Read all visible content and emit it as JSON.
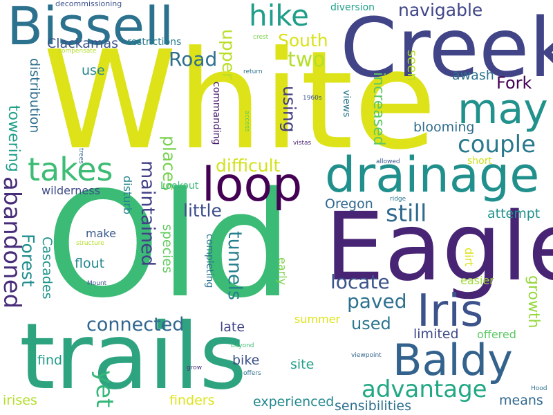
{
  "words": [
    {
      "text": "White",
      "color": "#dde318",
      "vertical": false
    },
    {
      "text": "Old",
      "color": "#3bbb75",
      "vertical": false
    },
    {
      "text": "Creek",
      "color": "#414487",
      "vertical": false
    },
    {
      "text": "Eagle",
      "color": "#482475",
      "vertical": false
    },
    {
      "text": "trails",
      "color": "#2ea37f",
      "vertical": false
    },
    {
      "text": "drainage",
      "color": "#21908d",
      "vertical": false
    },
    {
      "text": "Bissell",
      "color": "#2c728e",
      "vertical": false
    },
    {
      "text": "loop",
      "color": "#440154",
      "vertical": false
    },
    {
      "text": "Baldy",
      "color": "#33638d",
      "vertical": false
    },
    {
      "text": "Iris",
      "color": "#3b528b",
      "vertical": false
    },
    {
      "text": "may",
      "color": "#21918c",
      "vertical": false
    },
    {
      "text": "takes",
      "color": "#3dbc74",
      "vertical": false
    },
    {
      "text": "hike",
      "color": "#1f9e89",
      "vertical": false
    },
    {
      "text": "advantage",
      "color": "#22a884",
      "vertical": false
    },
    {
      "text": "couple",
      "color": "#29798e",
      "vertical": false
    },
    {
      "text": "abandoned",
      "color": "#472c7a",
      "vertical": true
    },
    {
      "text": "yet",
      "color": "#35b779",
      "vertical": true
    },
    {
      "text": "still",
      "color": "#306a8e",
      "vertical": false
    },
    {
      "text": "connected",
      "color": "#31668e",
      "vertical": false
    },
    {
      "text": "navigable",
      "color": "#404688",
      "vertical": false
    },
    {
      "text": "tunnels",
      "color": "#27808e",
      "vertical": true
    },
    {
      "text": "maintained",
      "color": "#424086",
      "vertical": true
    },
    {
      "text": "Forest",
      "color": "#218e8d",
      "vertical": true
    },
    {
      "text": "locate",
      "color": "#3b528b",
      "vertical": false
    },
    {
      "text": "paved",
      "color": "#2d718e",
      "vertical": false
    },
    {
      "text": "difficult",
      "color": "#d2e21b",
      "vertical": false
    },
    {
      "text": "South",
      "color": "#d8e219",
      "vertical": false
    },
    {
      "text": "two",
      "color": "#b5de2b",
      "vertical": false
    },
    {
      "text": "Road",
      "color": "#2e6f8e",
      "vertical": false
    },
    {
      "text": "upper",
      "color": "#bade28",
      "vertical": true
    },
    {
      "text": "using",
      "color": "#433e85",
      "vertical": true
    },
    {
      "text": "places",
      "color": "#7ad151",
      "vertical": true
    },
    {
      "text": "little",
      "color": "#3d4e8a",
      "vertical": false
    },
    {
      "text": "towering",
      "color": "#1fa088",
      "vertical": true
    },
    {
      "text": "Fork",
      "color": "#440154",
      "vertical": false
    },
    {
      "text": "growth",
      "color": "#97d83f",
      "vertical": true
    },
    {
      "text": "used",
      "color": "#2b758e",
      "vertical": false
    },
    {
      "text": "increased",
      "color": "#5ec962",
      "vertical": true
    },
    {
      "text": "Clackamas",
      "color": "#3b528b",
      "vertical": false
    },
    {
      "text": "blooming",
      "color": "#2f6c8e",
      "vertical": false
    },
    {
      "text": "distribution",
      "color": "#2e6e8e",
      "vertical": true
    },
    {
      "text": "Cascades",
      "color": "#1f948c",
      "vertical": true
    },
    {
      "text": "species",
      "color": "#63cb5f",
      "vertical": true
    },
    {
      "text": "wilderness",
      "color": "#3e4989",
      "vertical": false
    },
    {
      "text": "attempt",
      "color": "#20928c",
      "vertical": false
    },
    {
      "text": "Oregon",
      "color": "#31688e",
      "vertical": false
    },
    {
      "text": "experienced",
      "color": "#23898e",
      "vertical": false
    },
    {
      "text": "sensibilities",
      "color": "#2d718e",
      "vertical": false
    },
    {
      "text": "irises",
      "color": "#b5de2b",
      "vertical": false
    },
    {
      "text": "finders",
      "color": "#dde318",
      "vertical": false
    },
    {
      "text": "means",
      "color": "#31688e",
      "vertical": false
    },
    {
      "text": "flout",
      "color": "#24868e",
      "vertical": false
    },
    {
      "text": "find",
      "color": "#1f9a8a",
      "vertical": false
    },
    {
      "text": "bike",
      "color": "#3b528b",
      "vertical": false
    },
    {
      "text": "site",
      "color": "#1fa088",
      "vertical": false
    },
    {
      "text": "limited",
      "color": "#3e4a89",
      "vertical": false
    },
    {
      "text": "offered",
      "color": "#5cc863",
      "vertical": false
    },
    {
      "text": "late",
      "color": "#404588",
      "vertical": false
    },
    {
      "text": "summer",
      "color": "#dde318",
      "vertical": false
    },
    {
      "text": "easier",
      "color": "#a0da39",
      "vertical": false
    },
    {
      "text": "awash",
      "color": "#2c738e",
      "vertical": false
    },
    {
      "text": "seen",
      "color": "#b5de2b",
      "vertical": true
    },
    {
      "text": "use",
      "color": "#25858e",
      "vertical": false
    },
    {
      "text": "make",
      "color": "#38598c",
      "vertical": false
    },
    {
      "text": "disturb",
      "color": "#25848e",
      "vertical": true
    },
    {
      "text": "early",
      "color": "#7fd34e",
      "vertical": true
    },
    {
      "text": "short",
      "color": "#cde11d",
      "vertical": false
    },
    {
      "text": "Lookout",
      "color": "#3aba76",
      "vertical": false
    },
    {
      "text": "diversion",
      "color": "#1fa187",
      "vertical": false
    },
    {
      "text": "restrictions",
      "color": "#287c8e",
      "vertical": false
    },
    {
      "text": "completing",
      "color": "#2c728e",
      "vertical": true
    },
    {
      "text": "commanding",
      "color": "#481a6c",
      "vertical": true
    },
    {
      "text": "dirt",
      "color": "#dde318",
      "vertical": true
    },
    {
      "text": "views",
      "color": "#2a788e",
      "vertical": true
    },
    {
      "text": "decommissioning",
      "color": "#3b528b",
      "vertical": false
    },
    {
      "text": "compensate",
      "color": "#b5de2b",
      "vertical": false
    },
    {
      "text": "return",
      "color": "#2c728e",
      "vertical": false
    },
    {
      "text": "crest",
      "color": "#7ad151",
      "vertical": false
    },
    {
      "text": "1960s",
      "color": "#3b528b",
      "vertical": false
    },
    {
      "text": "vistas",
      "color": "#481f70",
      "vertical": false
    },
    {
      "text": "allowed",
      "color": "#39568c",
      "vertical": false
    },
    {
      "text": "ridge",
      "color": "#2a788e",
      "vertical": false
    },
    {
      "text": "access",
      "color": "#5ec962",
      "vertical": true
    },
    {
      "text": "trees",
      "color": "#33638d",
      "vertical": true
    },
    {
      "text": "structure",
      "color": "#b5de2b",
      "vertical": false
    },
    {
      "text": "Mount",
      "color": "#3b528b",
      "vertical": false
    },
    {
      "text": "beyond",
      "color": "#3dbc74",
      "vertical": false
    },
    {
      "text": "grow",
      "color": "#472c7a",
      "vertical": false
    },
    {
      "text": "offers",
      "color": "#2c728e",
      "vertical": false
    },
    {
      "text": "viewpoint",
      "color": "#33638d",
      "vertical": false
    },
    {
      "text": "Hood",
      "color": "#2c728e",
      "vertical": false
    }
  ]
}
